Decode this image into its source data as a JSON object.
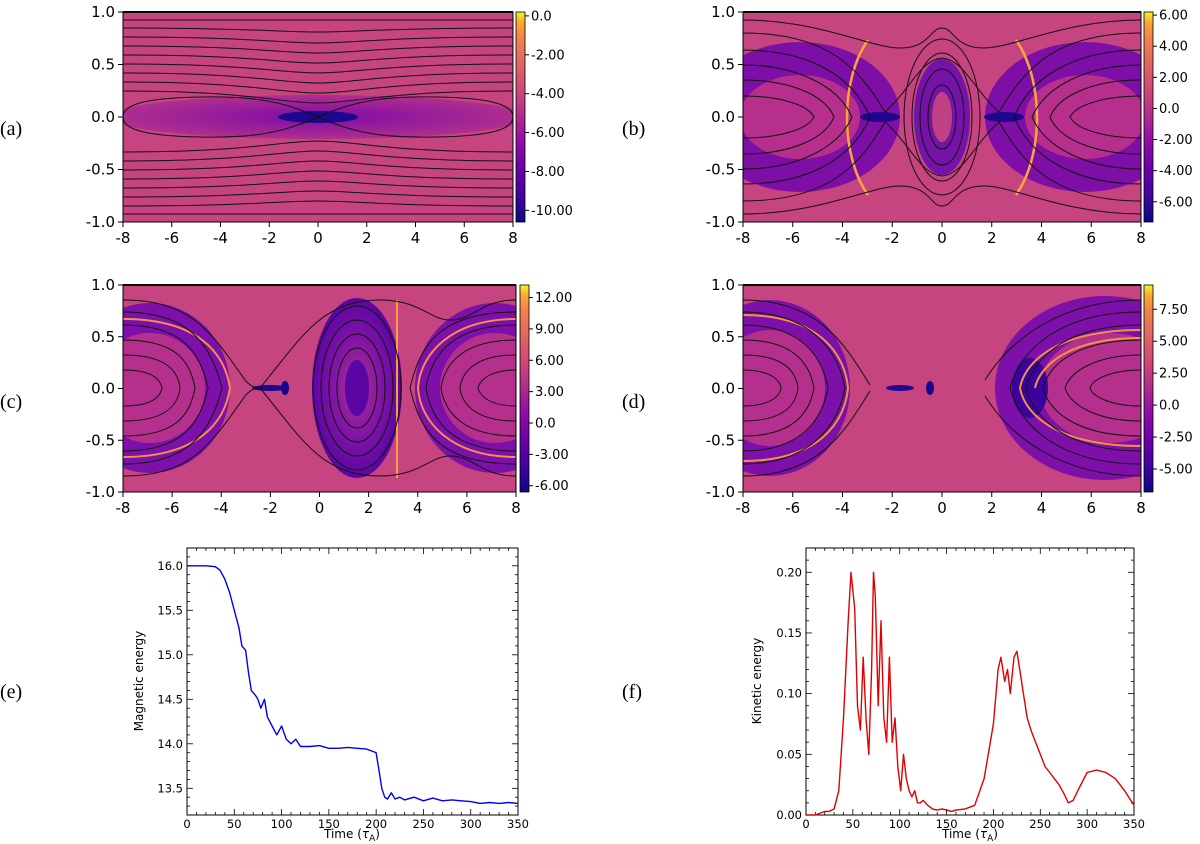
{
  "panels": [
    {
      "id": "a",
      "label": "(a)",
      "colorbar_ticks": [
        "0.0",
        "-2.00",
        "-4.00",
        "-6.00",
        "-8.00",
        "-10.00"
      ],
      "cb_min": -10.6,
      "cb_max": 0.2
    },
    {
      "id": "b",
      "label": "(b)",
      "colorbar_ticks": [
        "6.00",
        "4.00",
        "2.00",
        "0.0",
        "-2.00",
        "-4.00",
        "-6.00"
      ],
      "cb_min": -7.3,
      "cb_max": 6.2
    },
    {
      "id": "c",
      "label": "(c)",
      "colorbar_ticks": [
        "12.00",
        "9.00",
        "6.00",
        "3.00",
        "0.0",
        "-3.00",
        "-6.00"
      ],
      "cb_min": -6.6,
      "cb_max": 13.2
    },
    {
      "id": "d",
      "label": "(d)",
      "colorbar_ticks": [
        "7.50",
        "5.00",
        "2.50",
        "0.0",
        "-2.50",
        "-5.00"
      ],
      "cb_min": -6.8,
      "cb_max": 9.4
    },
    {
      "id": "e",
      "label": "(e)"
    },
    {
      "id": "f",
      "label": "(f)"
    }
  ],
  "contour_axes": {
    "x_ticks": [
      "-8",
      "-6",
      "-4",
      "-2",
      "0",
      "2",
      "4",
      "6",
      "8"
    ],
    "y_ticks": [
      "1.0",
      "0.5",
      "0.0",
      "-0.5",
      "-1.0"
    ],
    "xlim": [
      -8,
      8
    ],
    "ylim": [
      -1,
      1
    ]
  },
  "chart_data": [
    {
      "type": "line",
      "panel": "e",
      "title": "",
      "xlabel": "Time (τ_A)",
      "ylabel": "Magnetic energy",
      "xlim": [
        0,
        350
      ],
      "ylim": [
        13.2,
        16.2
      ],
      "x_ticks": [
        "0",
        "50",
        "100",
        "150",
        "200",
        "250",
        "300",
        "350"
      ],
      "y_ticks": [
        "16.0",
        "15.5",
        "15.0",
        "14.5",
        "14.0",
        "13.5"
      ],
      "color": "#0000ee",
      "x": [
        0,
        10,
        20,
        30,
        35,
        40,
        45,
        50,
        55,
        58,
        62,
        65,
        68,
        72,
        75,
        78,
        82,
        85,
        90,
        95,
        100,
        105,
        110,
        115,
        120,
        130,
        140,
        150,
        160,
        170,
        180,
        190,
        195,
        200,
        203,
        206,
        209,
        212,
        216,
        220,
        225,
        230,
        240,
        250,
        260,
        270,
        280,
        290,
        300,
        310,
        320,
        330,
        340,
        350
      ],
      "y": [
        16.0,
        16.0,
        16.0,
        15.99,
        15.95,
        15.85,
        15.7,
        15.5,
        15.3,
        15.1,
        15.05,
        14.8,
        14.6,
        14.55,
        14.5,
        14.4,
        14.5,
        14.3,
        14.2,
        14.1,
        14.2,
        14.05,
        14.0,
        14.05,
        13.97,
        13.97,
        13.98,
        13.95,
        13.95,
        13.96,
        13.95,
        13.94,
        13.92,
        13.9,
        13.7,
        13.5,
        13.4,
        13.38,
        13.45,
        13.38,
        13.4,
        13.37,
        13.4,
        13.36,
        13.39,
        13.36,
        13.37,
        13.36,
        13.35,
        13.33,
        13.34,
        13.33,
        13.34,
        13.33
      ]
    },
    {
      "type": "line",
      "panel": "f",
      "title": "",
      "xlabel": "Time (τ_A)",
      "ylabel": "Kinetic energy",
      "xlim": [
        0,
        350
      ],
      "ylim": [
        0,
        0.22
      ],
      "x_ticks": [
        "0",
        "50",
        "100",
        "150",
        "200",
        "250",
        "300",
        "350"
      ],
      "y_ticks": [
        "0.20",
        "0.15",
        "0.10",
        "0.05",
        "0.00"
      ],
      "color": "#e00000",
      "x": [
        0,
        10,
        20,
        25,
        30,
        35,
        40,
        45,
        48,
        52,
        55,
        58,
        61,
        64,
        67,
        70,
        72,
        74,
        77,
        80,
        83,
        86,
        89,
        92,
        95,
        98,
        101,
        104,
        107,
        110,
        113,
        116,
        119,
        122,
        125,
        130,
        135,
        140,
        145,
        150,
        155,
        160,
        170,
        180,
        190,
        200,
        205,
        208,
        212,
        215,
        218,
        222,
        225,
        228,
        232,
        236,
        240,
        245,
        250,
        255,
        260,
        265,
        270,
        275,
        280,
        285,
        290,
        300,
        310,
        320,
        330,
        340,
        350
      ],
      "y": [
        0.0,
        0.0,
        0.003,
        0.003,
        0.005,
        0.02,
        0.08,
        0.16,
        0.2,
        0.17,
        0.09,
        0.07,
        0.13,
        0.08,
        0.05,
        0.12,
        0.2,
        0.18,
        0.09,
        0.16,
        0.08,
        0.06,
        0.13,
        0.06,
        0.08,
        0.04,
        0.02,
        0.05,
        0.03,
        0.02,
        0.015,
        0.02,
        0.01,
        0.01,
        0.012,
        0.008,
        0.005,
        0.004,
        0.005,
        0.004,
        0.003,
        0.004,
        0.005,
        0.008,
        0.03,
        0.075,
        0.12,
        0.13,
        0.11,
        0.12,
        0.1,
        0.13,
        0.135,
        0.12,
        0.1,
        0.08,
        0.07,
        0.06,
        0.05,
        0.04,
        0.035,
        0.03,
        0.025,
        0.018,
        0.01,
        0.012,
        0.02,
        0.035,
        0.037,
        0.035,
        0.03,
        0.02,
        0.008
      ]
    }
  ]
}
